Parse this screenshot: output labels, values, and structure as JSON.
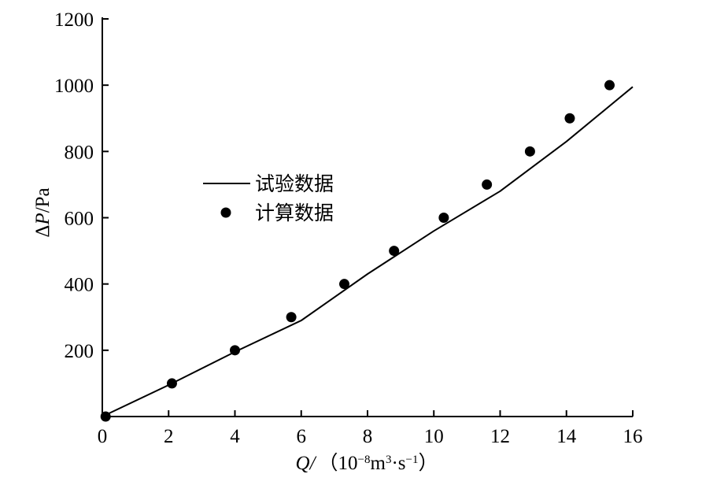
{
  "chart_data": {
    "type": "line",
    "title": "",
    "xlabel": {
      "symbol": "Q",
      "unit_open": "（10",
      "unit_exp": "−8",
      "unit_mid": "m",
      "unit_exp2": "3",
      "unit_mid2": "·s",
      "unit_exp3": "−1",
      "unit_close": "）"
    },
    "ylabel": {
      "prefix": "Δ",
      "symbol": "P",
      "unit": "/Pa"
    },
    "xlim": [
      0,
      16
    ],
    "ylim": [
      0,
      1200
    ],
    "xticks": [
      0,
      2,
      4,
      6,
      8,
      10,
      12,
      14,
      16
    ],
    "yticks": [
      200,
      400,
      600,
      800,
      1000,
      1200
    ],
    "grid": false,
    "legend_position": "center-left",
    "series": [
      {
        "name": "试验数据",
        "kind": "line",
        "color": "#000000",
        "x": [
          0,
          2,
          4,
          6,
          8,
          10,
          12,
          14,
          16
        ],
        "y": [
          0,
          95,
          195,
          290,
          430,
          560,
          680,
          830,
          995
        ]
      },
      {
        "name": "计算数据",
        "kind": "scatter",
        "color": "#000000",
        "x": [
          0.1,
          2.1,
          4.0,
          5.7,
          7.3,
          8.8,
          10.3,
          11.6,
          12.9,
          14.1,
          15.3
        ],
        "y": [
          0,
          100,
          200,
          300,
          400,
          500,
          600,
          700,
          800,
          900,
          1000
        ]
      }
    ]
  }
}
